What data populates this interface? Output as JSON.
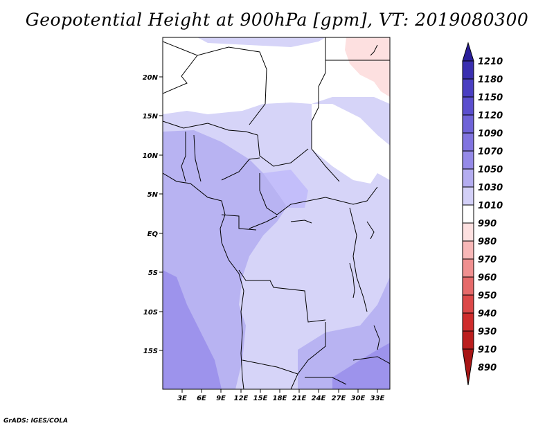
{
  "title": "Geopotential Height at 900hPa [gpm], VT: 2019080300",
  "credit": "GrADS: IGES/COLA",
  "map": {
    "lat_labels": [
      "20N",
      "15N",
      "10N",
      "5N",
      "EQ",
      "5S",
      "10S",
      "15S"
    ],
    "lon_labels": [
      "3E",
      "6E",
      "9E",
      "12E",
      "15E",
      "18E",
      "21E",
      "24E",
      "27E",
      "30E",
      "33E"
    ],
    "extent": {
      "lon": [
        0,
        35
      ],
      "lat": [
        -20,
        25
      ]
    }
  },
  "colorbar": {
    "levels": [
      "1210",
      "1180",
      "1150",
      "1120",
      "1090",
      "1070",
      "1050",
      "1030",
      "1010",
      "990",
      "980",
      "970",
      "960",
      "950",
      "940",
      "930",
      "910",
      "890"
    ],
    "colors": [
      "#2a1e9a",
      "#3a2fb0",
      "#4a3fc2",
      "#5b4fce",
      "#6f63d8",
      "#8174e0",
      "#958ae8",
      "#b4adf0",
      "#d3d0f7",
      "#ffffff",
      "#fde0e0",
      "#f8b8b8",
      "#f09090",
      "#e66a6a",
      "#dc4848",
      "#cf2c2c",
      "#bb1e1e",
      "#a81515"
    ]
  },
  "fill_colors": {
    "land_light": "#dcdcfa",
    "mid": "#b8b3f2",
    "dark": "#9d93ec",
    "pink": "#fde0e0"
  }
}
